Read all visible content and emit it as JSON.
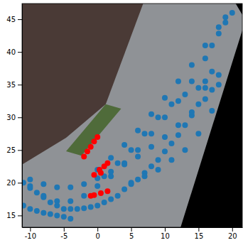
{
  "chart_data": {
    "type": "scatter",
    "xlim": [
      -11.2,
      21.5
    ],
    "ylim": [
      13.2,
      47.4
    ],
    "xticks": [
      -10,
      -5,
      0,
      5,
      10,
      15,
      20
    ],
    "yticks": [
      15,
      20,
      25,
      30,
      35,
      40,
      45
    ],
    "series": [
      {
        "color": "#1f77b4",
        "marker": "o",
        "x": [
          -11,
          -10,
          -9,
          -8,
          -7,
          -6,
          -5,
          -4,
          -3,
          -2,
          -1,
          0,
          1,
          2,
          3,
          4,
          5,
          6,
          7,
          8,
          9,
          10,
          11,
          12,
          13,
          14,
          15,
          16,
          17,
          -10,
          -8,
          -6,
          -4,
          -2,
          0,
          2,
          4,
          6,
          8,
          10,
          12,
          14,
          16,
          17,
          18,
          19,
          20,
          -11,
          -10,
          -9,
          -8,
          -7,
          -6,
          -5,
          -4,
          0,
          2,
          4,
          6,
          8,
          10,
          12,
          14,
          16,
          18,
          19,
          -10,
          -8,
          -6,
          -4,
          -2,
          0,
          2,
          4,
          6,
          8,
          10,
          12,
          14,
          16,
          17,
          18,
          1,
          3,
          5,
          7,
          9,
          11,
          13,
          15,
          16,
          5,
          7,
          9,
          11,
          13,
          15,
          17,
          18
        ],
        "y": [
          20,
          19.2,
          18.5,
          17.8,
          17,
          16.5,
          16,
          16,
          16,
          16.1,
          16.3,
          16.5,
          17,
          17.5,
          18,
          19,
          19.8,
          20.5,
          21.5,
          22.5,
          23.5,
          24.8,
          26,
          27.3,
          28.8,
          30.3,
          32,
          34.5,
          37,
          19.5,
          18,
          17.2,
          17.2,
          18,
          19.5,
          21,
          23,
          25,
          27.5,
          30,
          32.5,
          35.5,
          39,
          41,
          42.8,
          44.5,
          46,
          16.5,
          16,
          15.7,
          15.4,
          15.2,
          15,
          14.8,
          14.5,
          22,
          23.8,
          25.8,
          28,
          30.5,
          33,
          35.5,
          38,
          41,
          43.8,
          45.3,
          20.5,
          19.8,
          19.3,
          19.3,
          19.8,
          20.7,
          21.7,
          22.8,
          24,
          25.5,
          27,
          28.8,
          30.8,
          32.8,
          34.2,
          36.5,
          21,
          23,
          25,
          27.5,
          30,
          32,
          33.5,
          34.5,
          35.5,
          20,
          21,
          22,
          23.5,
          25,
          27.5,
          31,
          35
        ]
      },
      {
        "color": "#ff0000",
        "marker": "o",
        "x": [
          -2,
          -1.5,
          -1,
          -0.5,
          0,
          0.3,
          1,
          1.5,
          0.5,
          -0.5,
          -1,
          -0.5,
          0.5,
          1.5
        ],
        "y": [
          24,
          24.8,
          25.5,
          26.3,
          27,
          22,
          22.5,
          23,
          21.5,
          21.2,
          18,
          18.1,
          18.4,
          18.7
        ]
      }
    ]
  }
}
